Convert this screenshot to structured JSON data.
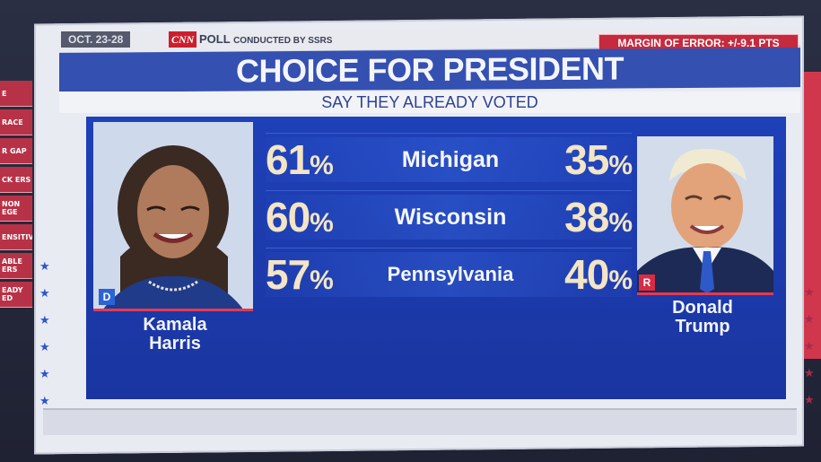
{
  "header": {
    "date_range": "OCT. 23-28",
    "network_logo": "CNN",
    "poll_label": "POLL",
    "poll_conducted": "CONDUCTED BY SSRS",
    "margin_of_error": "MARGIN OF ERROR: +/-9.1 PTS"
  },
  "title": "CHOICE FOR PRESIDENT",
  "subtitle": "SAY THEY ALREADY VOTED",
  "candidates": {
    "left": {
      "name_line1": "Kamala",
      "name_line2": "Harris",
      "party": "D",
      "party_color": "#2a64d6"
    },
    "right": {
      "name_line1": "Donald",
      "name_line2": "Trump",
      "party": "R",
      "party_color": "#d62c44"
    }
  },
  "chart_data": {
    "type": "table",
    "title": "CHOICE FOR PRESIDENT",
    "subtitle": "SAY THEY ALREADY VOTED",
    "categories": [
      "Michigan",
      "Wisconsin",
      "Pennsylvania"
    ],
    "series": [
      {
        "name": "Kamala Harris",
        "values": [
          61,
          60,
          57
        ]
      },
      {
        "name": "Donald Trump",
        "values": [
          35,
          38,
          40
        ]
      }
    ],
    "rows": [
      {
        "state": "Michigan",
        "harris": "61",
        "trump": "35",
        "sign": "%"
      },
      {
        "state": "Wisconsin",
        "harris": "60",
        "trump": "38",
        "sign": "%"
      },
      {
        "state": "Pennsylvania",
        "harris": "57",
        "trump": "40",
        "sign": "%"
      }
    ]
  },
  "sidebar": {
    "chips": [
      "E",
      "RACE",
      "R GAP",
      "CK ERS",
      "NON EGE",
      "ENSITIVES",
      "ABLE ERS",
      "EADY ED"
    ]
  },
  "colors": {
    "accent_blue": "#1e40b8",
    "title_blue": "#3450b0",
    "accent_red": "#c52a3d",
    "number_cream": "#f3e5c5"
  }
}
